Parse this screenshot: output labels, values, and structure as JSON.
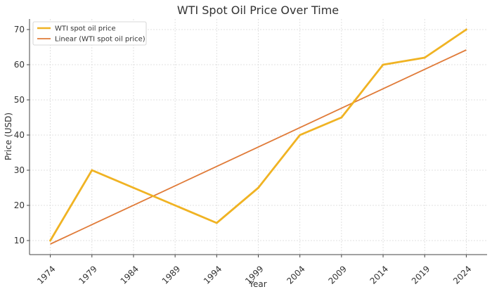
{
  "chart_data": {
    "type": "line",
    "title": "WTI Spot Oil Price Over Time",
    "xlabel": "Year",
    "ylabel": "Price (USD)",
    "x": [
      1974,
      1979,
      1984,
      1989,
      1994,
      1999,
      2004,
      2009,
      2014,
      2019,
      2024
    ],
    "x_tick_labels": [
      "1974",
      "1979",
      "1984",
      "1989",
      "1994",
      "1999",
      "2004",
      "2009",
      "2014",
      "2019",
      "2024"
    ],
    "y_ticks": [
      10,
      20,
      30,
      40,
      50,
      60,
      70
    ],
    "y_tick_labels": [
      "10",
      "20",
      "30",
      "40",
      "50",
      "60",
      "70"
    ],
    "xlim": [
      1971.5,
      2026.5
    ],
    "ylim": [
      6,
      73
    ],
    "grid": true,
    "legend_position": "top-left",
    "series": [
      {
        "name": "WTI spot oil price",
        "color": "#f0b323",
        "values": [
          10,
          30,
          25,
          20,
          15,
          25,
          40,
          45,
          60,
          62,
          70
        ]
      },
      {
        "name": "Linear (WTI spot oil price)",
        "color": "#e07b39",
        "linear_fit": [
          9,
          64.2
        ]
      }
    ]
  }
}
